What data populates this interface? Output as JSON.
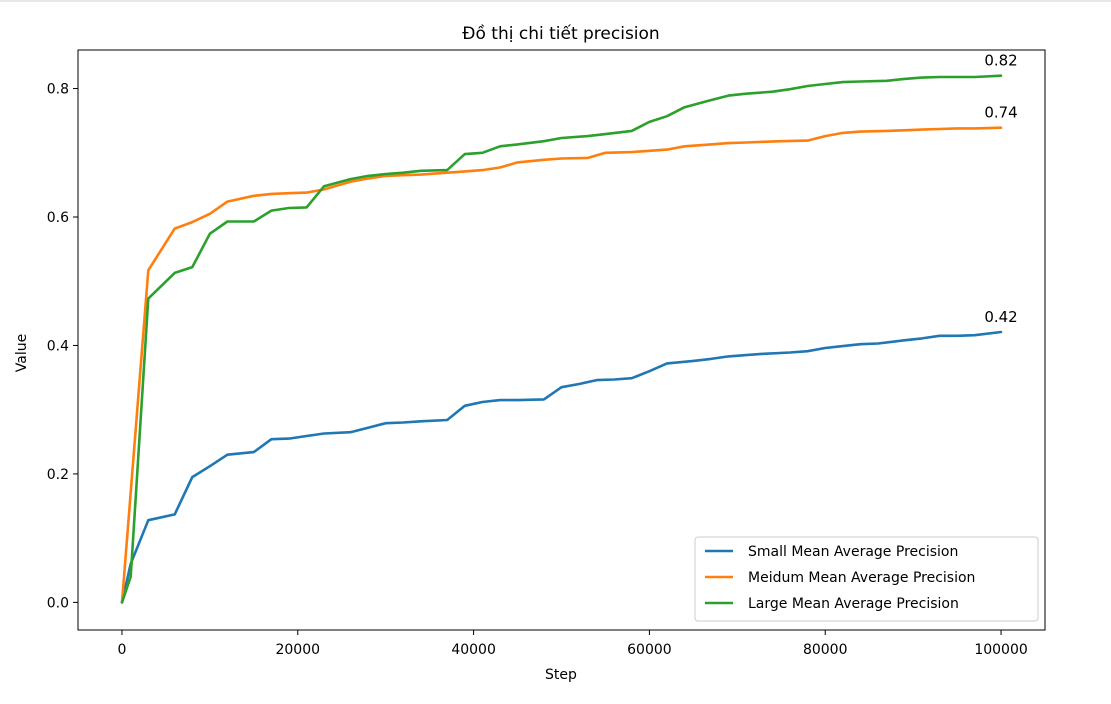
{
  "chart_data": {
    "type": "line",
    "title": "Đồ thị chi tiết precision",
    "xlabel": "Step",
    "ylabel": "Value",
    "xlim": [
      -5000,
      105000
    ],
    "ylim": [
      -0.043,
      0.86
    ],
    "xticks": [
      0,
      20000,
      40000,
      60000,
      80000,
      100000
    ],
    "yticks": [
      0.0,
      0.2,
      0.4,
      0.6,
      0.8
    ],
    "xtick_labels": [
      "0",
      "20000",
      "40000",
      "60000",
      "80000",
      "100000"
    ],
    "ytick_labels": [
      "0.0",
      "0.2",
      "0.4",
      "0.6",
      "0.8"
    ],
    "grid": false,
    "legend_position": "lower-right",
    "series": [
      {
        "name": "Small Mean Average Precision",
        "color": "#1f77b4",
        "end_label": "0.42",
        "x": [
          0,
          1000,
          3000,
          6000,
          8000,
          10000,
          12000,
          15000,
          17000,
          19000,
          21000,
          23000,
          26000,
          28000,
          30000,
          32000,
          34000,
          37000,
          39000,
          41000,
          43000,
          45000,
          48000,
          50000,
          52000,
          54000,
          56000,
          58000,
          60000,
          62000,
          65000,
          67000,
          69000,
          71000,
          73000,
          76000,
          78000,
          80000,
          82000,
          84000,
          86000,
          89000,
          91000,
          93000,
          95000,
          97000,
          100000
        ],
        "y": [
          0.0,
          0.06,
          0.128,
          0.137,
          0.195,
          0.212,
          0.23,
          0.234,
          0.254,
          0.255,
          0.259,
          0.263,
          0.265,
          0.272,
          0.279,
          0.28,
          0.282,
          0.284,
          0.306,
          0.312,
          0.315,
          0.315,
          0.316,
          0.335,
          0.34,
          0.346,
          0.347,
          0.349,
          0.36,
          0.372,
          0.376,
          0.379,
          0.383,
          0.385,
          0.387,
          0.389,
          0.391,
          0.396,
          0.399,
          0.402,
          0.403,
          0.408,
          0.411,
          0.415,
          0.415,
          0.416,
          0.421
        ]
      },
      {
        "name": "Meidum Mean Average Precision",
        "color": "#ff7f0e",
        "end_label": "0.74",
        "x": [
          0,
          3000,
          6000,
          8000,
          10000,
          12000,
          15000,
          17000,
          19000,
          21000,
          23000,
          26000,
          28000,
          30000,
          32000,
          34000,
          37000,
          39000,
          41000,
          43000,
          45000,
          48000,
          50000,
          53000,
          55000,
          58000,
          60000,
          62000,
          64000,
          67000,
          69000,
          71000,
          73000,
          75000,
          78000,
          80000,
          82000,
          84000,
          87000,
          89000,
          91000,
          93000,
          95000,
          97000,
          100000
        ],
        "y": [
          0.0,
          0.517,
          0.582,
          0.592,
          0.605,
          0.624,
          0.633,
          0.636,
          0.637,
          0.638,
          0.643,
          0.655,
          0.66,
          0.664,
          0.665,
          0.666,
          0.669,
          0.671,
          0.673,
          0.677,
          0.685,
          0.689,
          0.691,
          0.692,
          0.7,
          0.701,
          0.703,
          0.705,
          0.71,
          0.713,
          0.715,
          0.716,
          0.717,
          0.718,
          0.719,
          0.726,
          0.731,
          0.733,
          0.734,
          0.735,
          0.736,
          0.737,
          0.738,
          0.738,
          0.739
        ]
      },
      {
        "name": "Large Mean Average Precision",
        "color": "#2ca02c",
        "end_label": "0.82",
        "x": [
          0,
          1000,
          3000,
          6000,
          8000,
          10000,
          12000,
          15000,
          17000,
          19000,
          21000,
          23000,
          26000,
          28000,
          30000,
          32000,
          34000,
          37000,
          39000,
          41000,
          43000,
          45000,
          48000,
          50000,
          53000,
          55000,
          58000,
          60000,
          62000,
          64000,
          67000,
          69000,
          71000,
          74000,
          76000,
          78000,
          80000,
          82000,
          84000,
          87000,
          89000,
          91000,
          93000,
          95000,
          97000,
          100000
        ],
        "y": [
          0.0,
          0.04,
          0.473,
          0.513,
          0.522,
          0.574,
          0.593,
          0.593,
          0.61,
          0.614,
          0.615,
          0.648,
          0.659,
          0.664,
          0.667,
          0.669,
          0.672,
          0.673,
          0.698,
          0.7,
          0.71,
          0.713,
          0.718,
          0.723,
          0.726,
          0.729,
          0.734,
          0.748,
          0.757,
          0.771,
          0.782,
          0.789,
          0.792,
          0.795,
          0.799,
          0.804,
          0.807,
          0.81,
          0.811,
          0.812,
          0.815,
          0.817,
          0.818,
          0.818,
          0.818,
          0.82
        ]
      }
    ]
  }
}
